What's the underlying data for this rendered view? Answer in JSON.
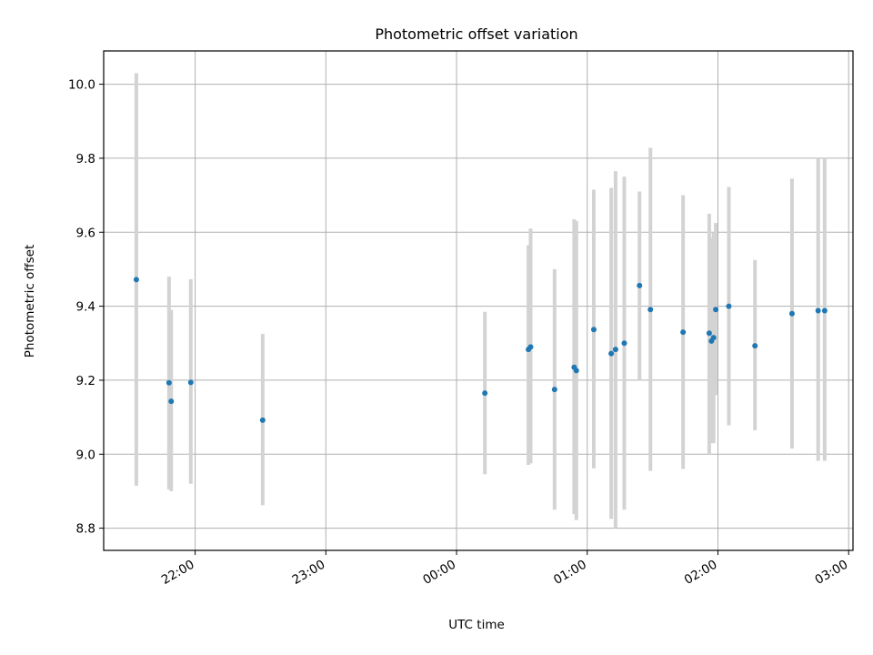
{
  "chart_data": {
    "type": "scatter",
    "title": "Photometric offset variation",
    "xlabel": "UTC time",
    "ylabel": "Photometric offset",
    "x_unit": "UTC time (HH:MM), timeline starting 21:00 on the first night",
    "xlim": [
      "21:18",
      "03:02"
    ],
    "ylim": [
      8.74,
      10.09
    ],
    "x_ticks": [
      "22:00",
      "23:00",
      "00:00",
      "01:00",
      "02:00",
      "03:00"
    ],
    "y_ticks": [
      "8.8",
      "9.0",
      "9.2",
      "9.4",
      "9.6",
      "9.8",
      "10.0"
    ],
    "grid": true,
    "colors": {
      "point": "#1f77b4",
      "errorbar": "#d3d3d3",
      "grid": "#b0b0b0"
    },
    "points": [
      {
        "time": "21:33",
        "y": 9.472,
        "ylo": 8.915,
        "yhi": 10.03
      },
      {
        "time": "21:48",
        "y": 9.193,
        "ylo": 8.905,
        "yhi": 9.48
      },
      {
        "time": "21:49",
        "y": 9.143,
        "ylo": 8.9,
        "yhi": 9.39
      },
      {
        "time": "21:58",
        "y": 9.194,
        "ylo": 8.92,
        "yhi": 9.473
      },
      {
        "time": "22:31",
        "y": 9.092,
        "ylo": 8.862,
        "yhi": 9.325
      },
      {
        "time": "00:13",
        "y": 9.165,
        "ylo": 8.946,
        "yhi": 9.385
      },
      {
        "time": "00:33",
        "y": 9.283,
        "ylo": 8.971,
        "yhi": 9.565
      },
      {
        "time": "00:34",
        "y": 9.29,
        "ylo": 8.975,
        "yhi": 9.61
      },
      {
        "time": "00:45",
        "y": 9.175,
        "ylo": 8.85,
        "yhi": 9.5
      },
      {
        "time": "00:54",
        "y": 9.235,
        "ylo": 8.838,
        "yhi": 9.635
      },
      {
        "time": "00:55",
        "y": 9.226,
        "ylo": 8.822,
        "yhi": 9.63
      },
      {
        "time": "01:03",
        "y": 9.337,
        "ylo": 8.962,
        "yhi": 9.715
      },
      {
        "time": "01:11",
        "y": 9.272,
        "ylo": 8.825,
        "yhi": 9.72
      },
      {
        "time": "01:13",
        "y": 9.283,
        "ylo": 8.8,
        "yhi": 9.765
      },
      {
        "time": "01:17",
        "y": 9.3,
        "ylo": 8.85,
        "yhi": 9.75
      },
      {
        "time": "01:24",
        "y": 9.456,
        "ylo": 9.2,
        "yhi": 9.71
      },
      {
        "time": "01:29",
        "y": 9.391,
        "ylo": 8.955,
        "yhi": 9.828
      },
      {
        "time": "01:44",
        "y": 9.33,
        "ylo": 8.96,
        "yhi": 9.7
      },
      {
        "time": "01:56",
        "y": 9.327,
        "ylo": 9.0,
        "yhi": 9.65
      },
      {
        "time": "01:57",
        "y": 9.306,
        "ylo": 9.03,
        "yhi": 9.585
      },
      {
        "time": "01:58",
        "y": 9.315,
        "ylo": 9.03,
        "yhi": 9.6
      },
      {
        "time": "01:59",
        "y": 9.391,
        "ylo": 9.16,
        "yhi": 9.625
      },
      {
        "time": "02:05",
        "y": 9.4,
        "ylo": 9.078,
        "yhi": 9.722
      },
      {
        "time": "02:17",
        "y": 9.293,
        "ylo": 9.065,
        "yhi": 9.525
      },
      {
        "time": "02:34",
        "y": 9.38,
        "ylo": 9.015,
        "yhi": 9.745
      },
      {
        "time": "02:46",
        "y": 9.388,
        "ylo": 8.982,
        "yhi": 9.8
      },
      {
        "time": "02:49",
        "y": 9.388,
        "ylo": 8.982,
        "yhi": 9.8
      }
    ]
  }
}
